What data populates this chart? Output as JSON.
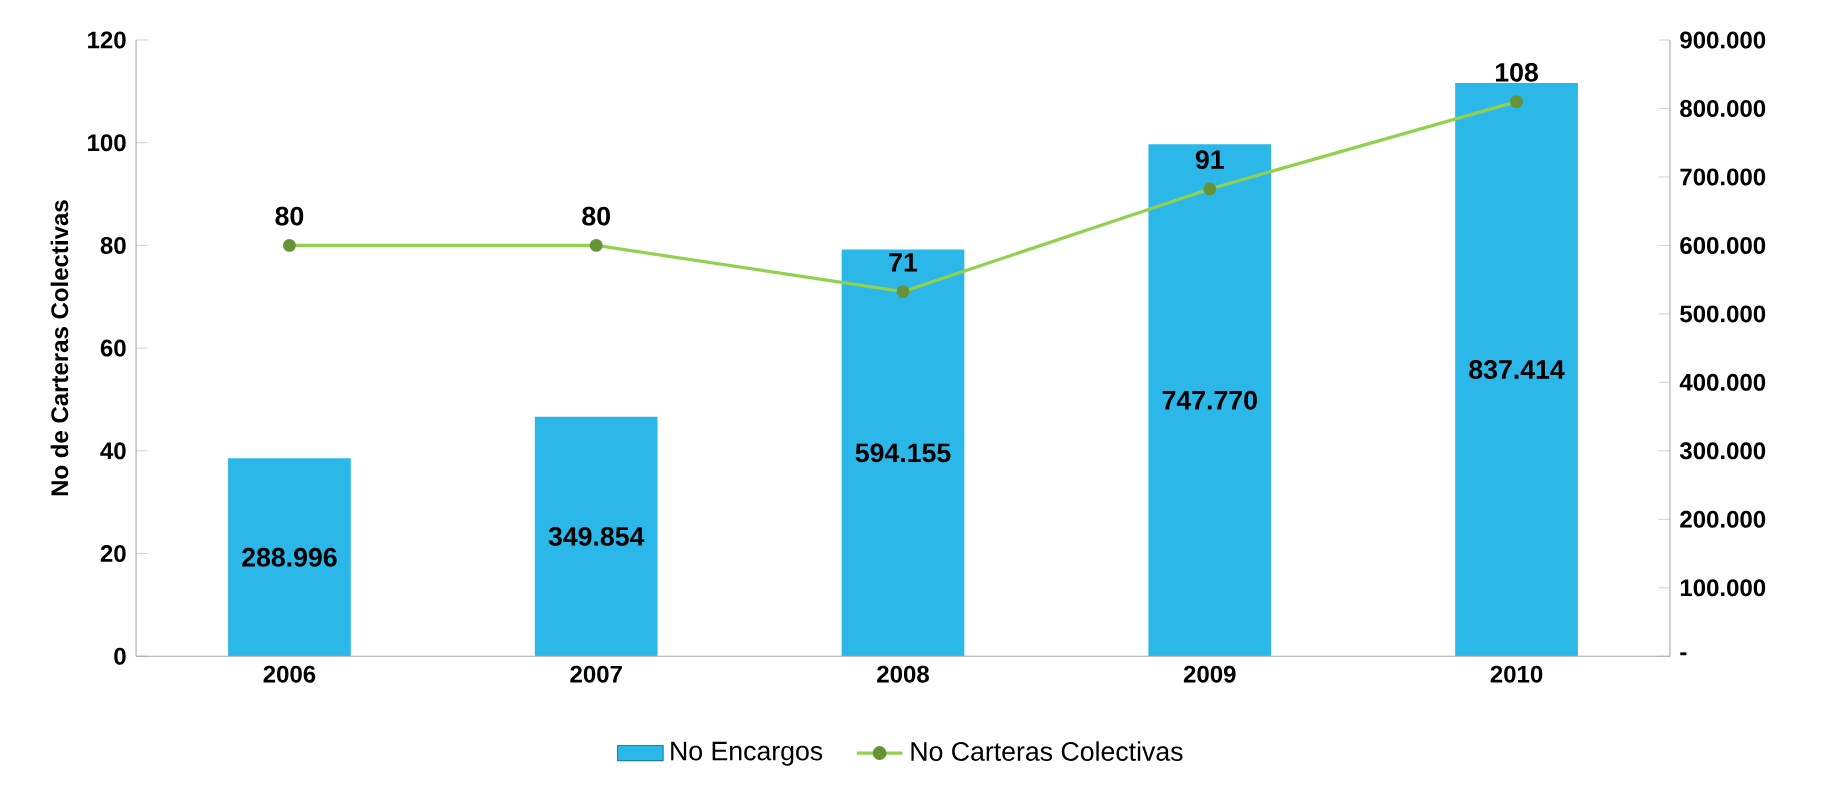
{
  "chart_data": {
    "type": "bar",
    "categories": [
      "2006",
      "2007",
      "2008",
      "2009",
      "2010"
    ],
    "ylabel": "No de Carteras Colectivas",
    "ylim": [
      0,
      120
    ],
    "yticks": [
      0,
      20,
      40,
      60,
      80,
      100,
      120
    ],
    "y2lim": [
      0,
      900000
    ],
    "y2ticks": [
      {
        "value": 0,
        "label": "-"
      },
      {
        "value": 100000,
        "label": "100.000"
      },
      {
        "value": 200000,
        "label": "200.000"
      },
      {
        "value": 300000,
        "label": "300.000"
      },
      {
        "value": 400000,
        "label": "400.000"
      },
      {
        "value": 500000,
        "label": "500.000"
      },
      {
        "value": 600000,
        "label": "600.000"
      },
      {
        "value": 700000,
        "label": "700.000"
      },
      {
        "value": 800000,
        "label": "800.000"
      },
      {
        "value": 900000,
        "label": "900.000"
      }
    ],
    "marker": "circle",
    "legend": "bottom",
    "series": [
      {
        "name": "No Encargos",
        "axis": "y2",
        "color": "#2bb8e8",
        "values": [
          288996,
          349854,
          594155,
          747770,
          837414
        ],
        "value_labels": [
          "288.996",
          "349.854",
          "594.155",
          "747.770",
          "837.414"
        ]
      },
      {
        "name": "No Carteras Colectivas",
        "type": "line",
        "color": "#92d050",
        "values": [
          80,
          80,
          71,
          91,
          108
        ],
        "value_labels": [
          "80",
          "80",
          "71",
          "91",
          "108"
        ]
      }
    ]
  }
}
